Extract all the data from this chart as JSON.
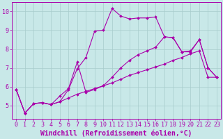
{
  "xlabel": "Windchill (Refroidissement éolien,°C)",
  "xlim_min": -0.5,
  "xlim_max": 23.5,
  "ylim_min": 4.3,
  "ylim_max": 10.5,
  "xticks": [
    0,
    1,
    2,
    3,
    4,
    5,
    6,
    7,
    8,
    9,
    10,
    11,
    12,
    13,
    14,
    15,
    16,
    17,
    18,
    19,
    20,
    21,
    22,
    23
  ],
  "yticks": [
    5,
    6,
    7,
    8,
    9,
    10
  ],
  "background_color": "#c8e8e8",
  "grid_color": "#a8cccc",
  "line_color": "#aa00aa",
  "curve1_x": [
    0,
    1,
    2,
    3,
    4,
    5,
    6,
    7,
    8,
    9,
    10,
    11,
    12,
    13,
    14,
    15,
    16,
    17,
    18,
    19,
    20,
    21,
    22,
    23
  ],
  "curve1_y": [
    5.85,
    4.6,
    5.1,
    5.15,
    5.05,
    5.2,
    5.85,
    6.95,
    7.55,
    8.95,
    9.0,
    10.15,
    9.75,
    9.6,
    9.65,
    9.65,
    9.7,
    8.65,
    8.6,
    7.85,
    7.9,
    8.5,
    7.0,
    6.5
  ],
  "curve2_x": [
    0,
    1,
    2,
    3,
    4,
    5,
    6,
    7,
    8,
    9,
    10,
    11,
    12,
    13,
    14,
    15,
    16,
    17,
    18,
    19,
    20,
    21,
    22,
    23
  ],
  "curve2_y": [
    5.85,
    4.6,
    5.1,
    5.15,
    5.05,
    5.5,
    5.9,
    7.3,
    5.7,
    5.85,
    6.05,
    6.5,
    7.0,
    7.4,
    7.7,
    7.9,
    8.1,
    8.65,
    8.6,
    7.85,
    7.85,
    8.5,
    7.0,
    6.5
  ],
  "curve3_x": [
    0,
    1,
    2,
    3,
    4,
    5,
    6,
    7,
    8,
    9,
    10,
    11,
    12,
    13,
    14,
    15,
    16,
    17,
    18,
    19,
    20,
    21,
    22,
    23
  ],
  "curve3_y": [
    5.85,
    4.6,
    5.1,
    5.15,
    5.05,
    5.2,
    5.4,
    5.6,
    5.75,
    5.9,
    6.05,
    6.2,
    6.4,
    6.6,
    6.75,
    6.9,
    7.05,
    7.2,
    7.4,
    7.55,
    7.75,
    7.9,
    6.5,
    6.5
  ],
  "fontsize_tick": 6,
  "fontsize_label": 7,
  "marker": "D",
  "markersize": 2.0,
  "linewidth": 0.8
}
